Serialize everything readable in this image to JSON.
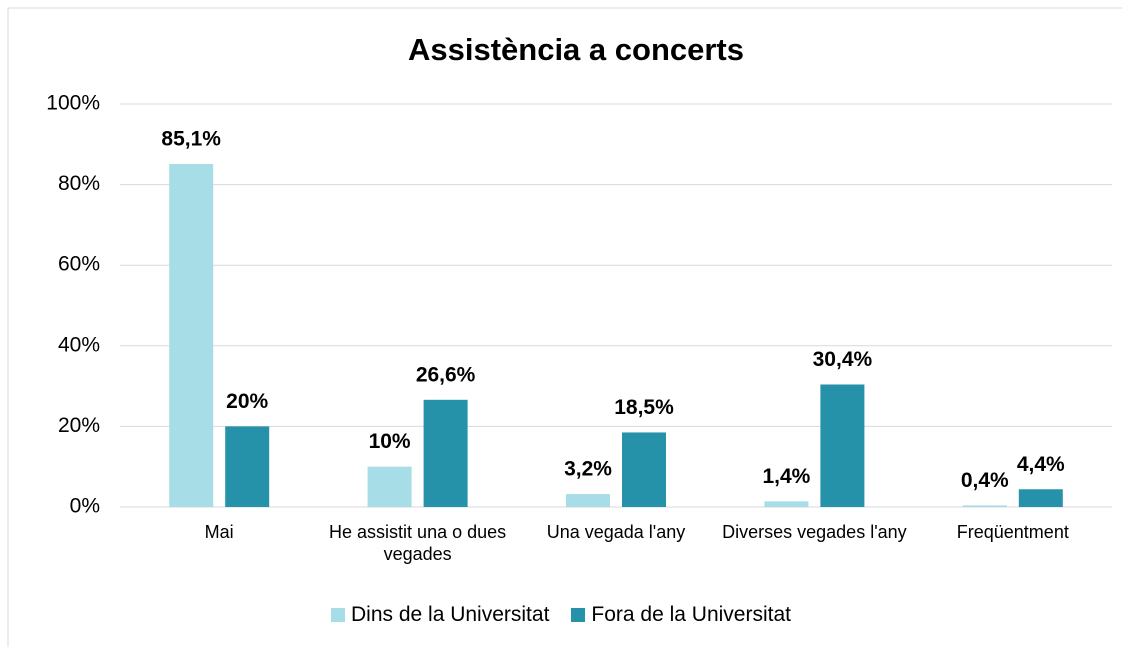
{
  "chart_data": {
    "type": "bar",
    "title": "Assistència a concerts",
    "categories": [
      "Mai",
      "He assistit una o dues vegades",
      "Una vegada l'any",
      "Diverses vegades l'any",
      "Freqüentment"
    ],
    "series": [
      {
        "name": "Dins de la Universitat",
        "color": "#a6dde6",
        "values": [
          85.1,
          10,
          3.2,
          1.4,
          0.4
        ],
        "value_labels": [
          "85,1%",
          "10%",
          "3,2%",
          "1,4%",
          "0,4%"
        ]
      },
      {
        "name": "Fora de la Universitat",
        "color": "#2592aa",
        "values": [
          20,
          26.6,
          18.5,
          30.4,
          4.4
        ],
        "value_labels": [
          "20%",
          "26,6%",
          "18,5%",
          "30,4%",
          "4,4%"
        ]
      }
    ],
    "ylim": [
      0,
      100
    ],
    "yticks": [
      {
        "value": 0,
        "label": "0%"
      },
      {
        "value": 20,
        "label": "20%"
      },
      {
        "value": 40,
        "label": "40%"
      },
      {
        "value": 60,
        "label": "60%"
      },
      {
        "value": 80,
        "label": "80%"
      },
      {
        "value": 100,
        "label": "100%"
      }
    ],
    "grid": true,
    "legend": "bottom"
  }
}
